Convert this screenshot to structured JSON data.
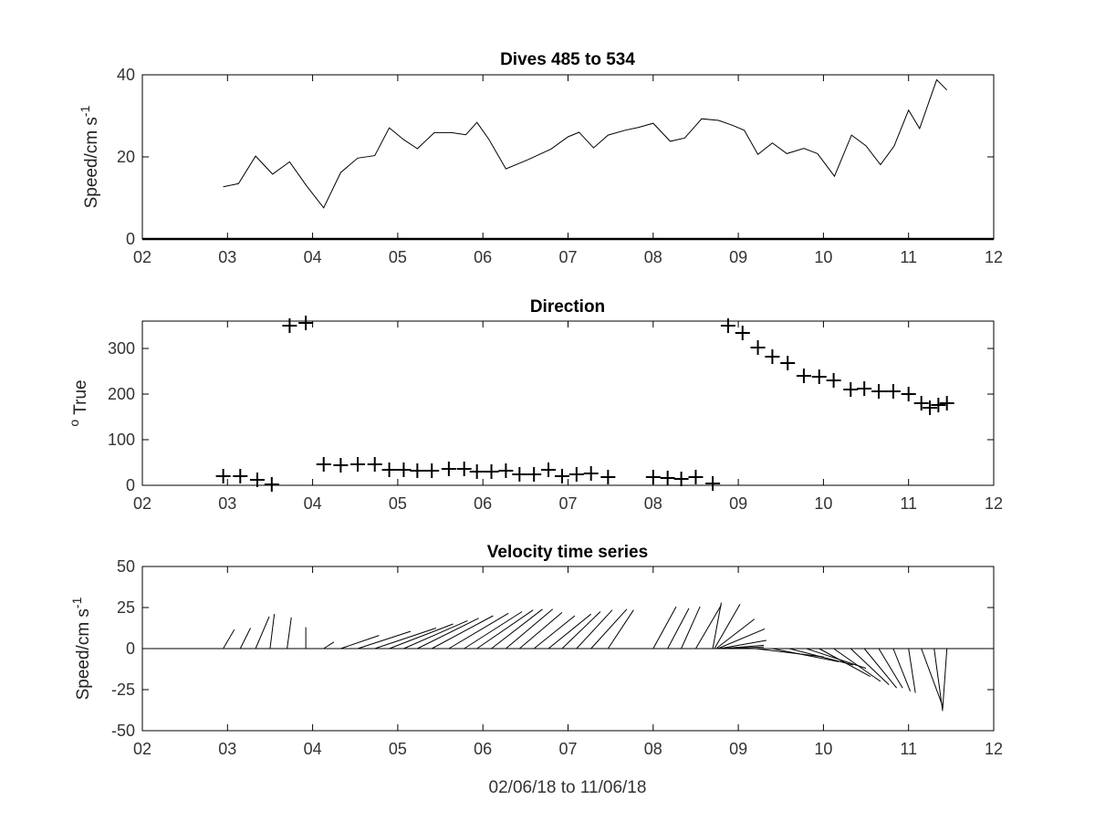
{
  "chart_data": [
    {
      "id": "speed",
      "type": "line",
      "title": "Dives 485 to 534",
      "ylabel": "Speed/cm s",
      "ylabel_sup": "-1",
      "xlabel": "",
      "xlim": [
        2,
        12
      ],
      "ylim": [
        0,
        40
      ],
      "xticks": [
        2,
        3,
        4,
        5,
        6,
        7,
        8,
        9,
        10,
        11,
        12
      ],
      "xticklabels": [
        "02",
        "03",
        "04",
        "05",
        "06",
        "07",
        "08",
        "09",
        "10",
        "11",
        "12"
      ],
      "yticks": [
        0,
        20,
        40
      ],
      "yticklabels": [
        "0",
        "20",
        "40"
      ],
      "grid": false,
      "series": [
        {
          "x": [
            2.95,
            3.13,
            3.33,
            3.53,
            3.73,
            3.93,
            4.13,
            4.33,
            4.53,
            4.73,
            4.9,
            5.07,
            5.23,
            5.43,
            5.63,
            5.8,
            5.93,
            6.07,
            6.27,
            6.53,
            6.8,
            7.0,
            7.13,
            7.3,
            7.47,
            7.67,
            7.83,
            8.0,
            8.2,
            8.37,
            8.57,
            8.77,
            8.93,
            9.07,
            9.23,
            9.4,
            9.57,
            9.77,
            9.93,
            10.13,
            10.33,
            10.5,
            10.67,
            10.83,
            11.0,
            11.13,
            11.33,
            11.45
          ],
          "y": [
            12.7,
            13.5,
            20.2,
            15.8,
            18.8,
            12.9,
            7.6,
            16.2,
            19.7,
            20.3,
            27.1,
            24.2,
            22.0,
            25.9,
            25.9,
            25.4,
            28.4,
            24.3,
            17.1,
            19.3,
            21.9,
            24.9,
            26.0,
            22.2,
            25.3,
            26.5,
            27.2,
            28.2,
            23.8,
            24.6,
            29.3,
            28.9,
            27.7,
            26.5,
            20.6,
            23.4,
            20.8,
            22.1,
            20.8,
            15.3,
            25.3,
            22.7,
            18.1,
            22.6,
            31.4,
            26.9,
            38.8,
            36.3
          ]
        }
      ]
    },
    {
      "id": "direction",
      "type": "scatter",
      "title": "Direction",
      "ylabel": "True",
      "ylabel_pre_sup": "o",
      "xlabel": "",
      "xlim": [
        2,
        12
      ],
      "ylim": [
        0,
        360
      ],
      "xticks": [
        2,
        3,
        4,
        5,
        6,
        7,
        8,
        9,
        10,
        11,
        12
      ],
      "xticklabels": [
        "02",
        "03",
        "04",
        "05",
        "06",
        "07",
        "08",
        "09",
        "10",
        "11",
        "12"
      ],
      "yticks": [
        0,
        100,
        200,
        300
      ],
      "yticklabels": [
        "0",
        "100",
        "200",
        "300"
      ],
      "grid": false,
      "marker": "+",
      "series": [
        {
          "x": [
            2.95,
            3.15,
            3.35,
            3.52,
            3.73,
            3.92,
            4.13,
            4.33,
            4.53,
            4.73,
            4.9,
            5.07,
            5.23,
            5.4,
            5.6,
            5.78,
            5.93,
            6.1,
            6.27,
            6.43,
            6.6,
            6.77,
            6.93,
            7.1,
            7.27,
            7.47,
            8.0,
            8.17,
            8.33,
            8.5,
            8.7,
            8.88,
            9.05,
            9.23,
            9.4,
            9.58,
            9.77,
            9.95,
            10.12,
            10.32,
            10.48,
            10.65,
            10.82,
            11.0,
            11.15,
            11.25,
            11.35,
            11.45
          ],
          "y": [
            20,
            20,
            12,
            2,
            350,
            356,
            46,
            44,
            46,
            46,
            34,
            34,
            32,
            32,
            36,
            36,
            30,
            30,
            32,
            24,
            24,
            34,
            20,
            24,
            26,
            18,
            18,
            16,
            14,
            18,
            4,
            350,
            334,
            302,
            282,
            268,
            240,
            238,
            230,
            210,
            212,
            206,
            206,
            200,
            180,
            170,
            176,
            180
          ]
        }
      ]
    },
    {
      "id": "velocity",
      "type": "line",
      "title": "Velocity time series",
      "ylabel": "Speed/cm s",
      "ylabel_sup": "-1",
      "xlabel": "02/06/18 to 11/06/18",
      "xlim": [
        2,
        12
      ],
      "ylim": [
        -50,
        50
      ],
      "xticks": [
        2,
        3,
        4,
        5,
        6,
        7,
        8,
        9,
        10,
        11,
        12
      ],
      "xticklabels": [
        "02",
        "03",
        "04",
        "05",
        "06",
        "07",
        "08",
        "09",
        "10",
        "11",
        "12"
      ],
      "yticks": [
        -50,
        -25,
        0,
        25,
        50
      ],
      "yticklabels": [
        "-50",
        "-25",
        "0",
        "25",
        "50"
      ],
      "grid": false,
      "zero_line": true,
      "stick_plot": true,
      "sticks": [
        {
          "t": 2.95,
          "u": 0.13,
          "v": 11.5
        },
        {
          "t": 3.15,
          "u": 0.12,
          "v": 12.5
        },
        {
          "t": 3.33,
          "u": 0.16,
          "v": 19.5
        },
        {
          "t": 3.5,
          "u": 0.05,
          "v": 21
        },
        {
          "t": 3.7,
          "u": 0.05,
          "v": 19
        },
        {
          "t": 3.92,
          "u": 0.0,
          "v": 13
        },
        {
          "t": 4.13,
          "u": 0.12,
          "v": 4
        },
        {
          "t": 4.33,
          "u": 0.45,
          "v": 8
        },
        {
          "t": 4.53,
          "u": 0.62,
          "v": 10.5
        },
        {
          "t": 4.73,
          "u": 0.72,
          "v": 12.5
        },
        {
          "t": 4.9,
          "u": 0.75,
          "v": 15
        },
        {
          "t": 5.07,
          "u": 0.75,
          "v": 17
        },
        {
          "t": 5.23,
          "u": 0.72,
          "v": 18.5
        },
        {
          "t": 5.4,
          "u": 0.72,
          "v": 20
        },
        {
          "t": 5.6,
          "u": 0.7,
          "v": 21.5
        },
        {
          "t": 5.78,
          "u": 0.68,
          "v": 22.5
        },
        {
          "t": 5.93,
          "u": 0.66,
          "v": 23.5
        },
        {
          "t": 6.1,
          "u": 0.6,
          "v": 24
        },
        {
          "t": 6.27,
          "u": 0.55,
          "v": 24
        },
        {
          "t": 6.43,
          "u": 0.5,
          "v": 22
        },
        {
          "t": 6.6,
          "u": 0.48,
          "v": 20
        },
        {
          "t": 6.77,
          "u": 0.5,
          "v": 21
        },
        {
          "t": 6.93,
          "u": 0.45,
          "v": 22.5
        },
        {
          "t": 7.1,
          "u": 0.42,
          "v": 23.5
        },
        {
          "t": 7.27,
          "u": 0.42,
          "v": 24
        },
        {
          "t": 7.47,
          "u": 0.3,
          "v": 23.5
        },
        {
          "t": 8.0,
          "u": 0.27,
          "v": 25.5
        },
        {
          "t": 8.17,
          "u": 0.25,
          "v": 24.5
        },
        {
          "t": 8.33,
          "u": 0.22,
          "v": 25.5
        },
        {
          "t": 8.5,
          "u": 0.3,
          "v": 26.5
        },
        {
          "t": 8.7,
          "u": 0.1,
          "v": 28
        },
        {
          "t": 8.72,
          "u": 0.3,
          "v": 27
        },
        {
          "t": 8.74,
          "u": 0.45,
          "v": 18
        },
        {
          "t": 8.76,
          "u": 0.55,
          "v": 12
        },
        {
          "t": 8.78,
          "u": 0.55,
          "v": 5
        },
        {
          "t": 8.8,
          "u": 0.5,
          "v": 2
        },
        {
          "t": 8.85,
          "u": 0.45,
          "v": 1
        },
        {
          "t": 9.2,
          "u": 0.8,
          "v": -5
        },
        {
          "t": 9.4,
          "u": 0.78,
          "v": -8
        },
        {
          "t": 9.6,
          "u": 0.75,
          "v": -10
        },
        {
          "t": 9.8,
          "u": 0.7,
          "v": -12
        },
        {
          "t": 9.95,
          "u": 0.6,
          "v": -17
        },
        {
          "t": 10.12,
          "u": 0.55,
          "v": -20
        },
        {
          "t": 10.32,
          "u": 0.45,
          "v": -22
        },
        {
          "t": 10.48,
          "u": 0.38,
          "v": -24
        },
        {
          "t": 10.65,
          "u": 0.28,
          "v": -24
        },
        {
          "t": 10.82,
          "u": 0.2,
          "v": -26
        },
        {
          "t": 11.0,
          "u": 0.08,
          "v": -27
        },
        {
          "t": 11.15,
          "u": 0.25,
          "v": -35
        },
        {
          "t": 11.3,
          "u": 0.1,
          "v": -38
        },
        {
          "t": 11.45,
          "u": -0.05,
          "v": -37
        }
      ]
    }
  ]
}
